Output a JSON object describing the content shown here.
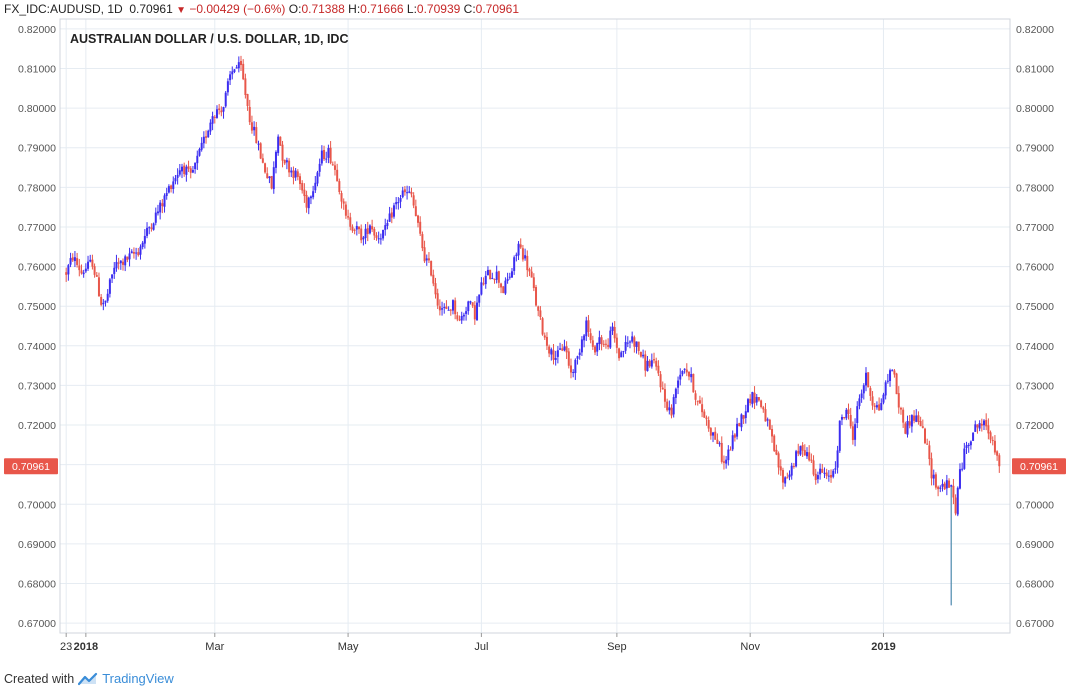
{
  "header": {
    "symbol": "FX_IDC:AUDUSD, 1D",
    "last": "0.70961",
    "change": "−0.00429 (−0.6%)",
    "o_label": "O:",
    "o": "0.71388",
    "h_label": "H:",
    "h": "0.71666",
    "l_label": "L:",
    "l": "0.70939",
    "c_label": "C:",
    "c": "0.70961"
  },
  "footer": {
    "created_with": "Created with",
    "brand": "TradingView"
  },
  "colors": {
    "up": "#3b2df0",
    "down": "#e8564a",
    "grid": "#e6ecf2",
    "axis_text": "#555555",
    "price_label_bg": "#e8564a",
    "outlier_wick": "#58a3a3"
  },
  "chart_data": {
    "type": "candlestick",
    "title": "AUSTRALIAN DOLLAR / U.S. DOLLAR, 1D, IDC",
    "ylim": [
      0.6675,
      0.8225
    ],
    "y_ticks": [
      "0.82000",
      "0.81000",
      "0.80000",
      "0.79000",
      "0.78000",
      "0.77000",
      "0.76000",
      "0.75000",
      "0.74000",
      "0.73000",
      "0.72000",
      "0.71000",
      "0.70000",
      "0.69000",
      "0.68000",
      "0.67000"
    ],
    "x_ticks": [
      {
        "label": "23",
        "day": 0
      },
      {
        "label": "2018",
        "day": 9,
        "bold": true
      },
      {
        "label": "Mar",
        "day": 68
      },
      {
        "label": "May",
        "day": 129
      },
      {
        "label": "Jul",
        "day": 190
      },
      {
        "label": "Sep",
        "day": 252
      },
      {
        "label": "Nov",
        "day": 313
      },
      {
        "label": "2019",
        "day": 374,
        "bold": true
      }
    ],
    "x_range_days": [
      -1,
      420
    ],
    "current_price": "0.70961",
    "grid": true,
    "path": [
      [
        0,
        0.7585
      ],
      [
        3,
        0.7625
      ],
      [
        7,
        0.7585
      ],
      [
        12,
        0.7612
      ],
      [
        16,
        0.751
      ],
      [
        18,
        0.7508
      ],
      [
        22,
        0.76
      ],
      [
        27,
        0.7615
      ],
      [
        33,
        0.764
      ],
      [
        38,
        0.77
      ],
      [
        44,
        0.776
      ],
      [
        48,
        0.781
      ],
      [
        53,
        0.7855
      ],
      [
        57,
        0.7825
      ],
      [
        62,
        0.79
      ],
      [
        67,
        0.7985
      ],
      [
        72,
        0.8005
      ],
      [
        75,
        0.808
      ],
      [
        77,
        0.8105
      ],
      [
        80,
        0.81
      ],
      [
        84,
        0.7975
      ],
      [
        87,
        0.792
      ],
      [
        90,
        0.786
      ],
      [
        94,
        0.78
      ],
      [
        97,
        0.7935
      ],
      [
        99,
        0.788
      ],
      [
        102,
        0.785
      ],
      [
        106,
        0.7825
      ],
      [
        110,
        0.776
      ],
      [
        114,
        0.782
      ],
      [
        117,
        0.788
      ],
      [
        120,
        0.789
      ],
      [
        124,
        0.783
      ],
      [
        128,
        0.772
      ],
      [
        132,
        0.77
      ],
      [
        136,
        0.767
      ],
      [
        139,
        0.771
      ],
      [
        142,
        0.7675
      ],
      [
        146,
        0.769
      ],
      [
        150,
        0.775
      ],
      [
        154,
        0.7785
      ],
      [
        158,
        0.778
      ],
      [
        161,
        0.77
      ],
      [
        164,
        0.7625
      ],
      [
        167,
        0.759
      ],
      [
        170,
        0.751
      ],
      [
        174,
        0.7485
      ],
      [
        177,
        0.7505
      ],
      [
        180,
        0.746
      ],
      [
        184,
        0.751
      ],
      [
        187,
        0.748
      ],
      [
        190,
        0.755
      ],
      [
        193,
        0.758
      ],
      [
        197,
        0.758
      ],
      [
        200,
        0.754
      ],
      [
        204,
        0.759
      ],
      [
        207,
        0.7655
      ],
      [
        210,
        0.762
      ],
      [
        213,
        0.7565
      ],
      [
        216,
        0.748
      ],
      [
        219,
        0.742
      ],
      [
        222,
        0.738
      ],
      [
        225,
        0.7375
      ],
      [
        228,
        0.7405
      ],
      [
        231,
        0.733
      ],
      [
        234,
        0.737
      ],
      [
        236,
        0.742
      ],
      [
        238,
        0.746
      ],
      [
        241,
        0.7385
      ],
      [
        244,
        0.742
      ],
      [
        247,
        0.7395
      ],
      [
        250,
        0.744
      ],
      [
        253,
        0.7375
      ],
      [
        256,
        0.74
      ],
      [
        259,
        0.742
      ],
      [
        262,
        0.739
      ],
      [
        265,
        0.735
      ],
      [
        268,
        0.736
      ],
      [
        271,
        0.733
      ],
      [
        274,
        0.726
      ],
      [
        277,
        0.723
      ],
      [
        280,
        0.7325
      ],
      [
        283,
        0.735
      ],
      [
        286,
        0.7315
      ],
      [
        289,
        0.7255
      ],
      [
        292,
        0.7225
      ],
      [
        295,
        0.7185
      ],
      [
        298,
        0.716
      ],
      [
        301,
        0.71
      ],
      [
        304,
        0.7145
      ],
      [
        307,
        0.7195
      ],
      [
        310,
        0.723
      ],
      [
        313,
        0.727
      ],
      [
        316,
        0.727
      ],
      [
        319,
        0.724
      ],
      [
        322,
        0.718
      ],
      [
        325,
        0.7115
      ],
      [
        328,
        0.706
      ],
      [
        331,
        0.708
      ],
      [
        334,
        0.712
      ],
      [
        337,
        0.7145
      ],
      [
        340,
        0.712
      ],
      [
        343,
        0.7075
      ],
      [
        346,
        0.708
      ],
      [
        349,
        0.706
      ],
      [
        352,
        0.71
      ],
      [
        354,
        0.72
      ],
      [
        357,
        0.724
      ],
      [
        360,
        0.7175
      ],
      [
        363,
        0.727
      ],
      [
        366,
        0.732
      ],
      [
        369,
        0.726
      ],
      [
        372,
        0.724
      ],
      [
        375,
        0.73
      ],
      [
        378,
        0.735
      ],
      [
        381,
        0.725
      ],
      [
        384,
        0.719
      ],
      [
        387,
        0.722
      ],
      [
        390,
        0.7215
      ],
      [
        393,
        0.7165
      ],
      [
        396,
        0.708
      ],
      [
        399,
        0.704
      ],
      [
        402,
        0.705
      ],
      [
        405,
        0.704
      ],
      [
        407,
        0.6988
      ],
      [
        409,
        0.708
      ],
      [
        412,
        0.715
      ],
      [
        415,
        0.7185
      ],
      [
        418,
        0.7205
      ],
      [
        421,
        0.7195
      ],
      [
        424,
        0.7165
      ],
      [
        427,
        0.7096
      ]
    ],
    "special_low": {
      "index": 405,
      "low": 0.6745
    }
  }
}
